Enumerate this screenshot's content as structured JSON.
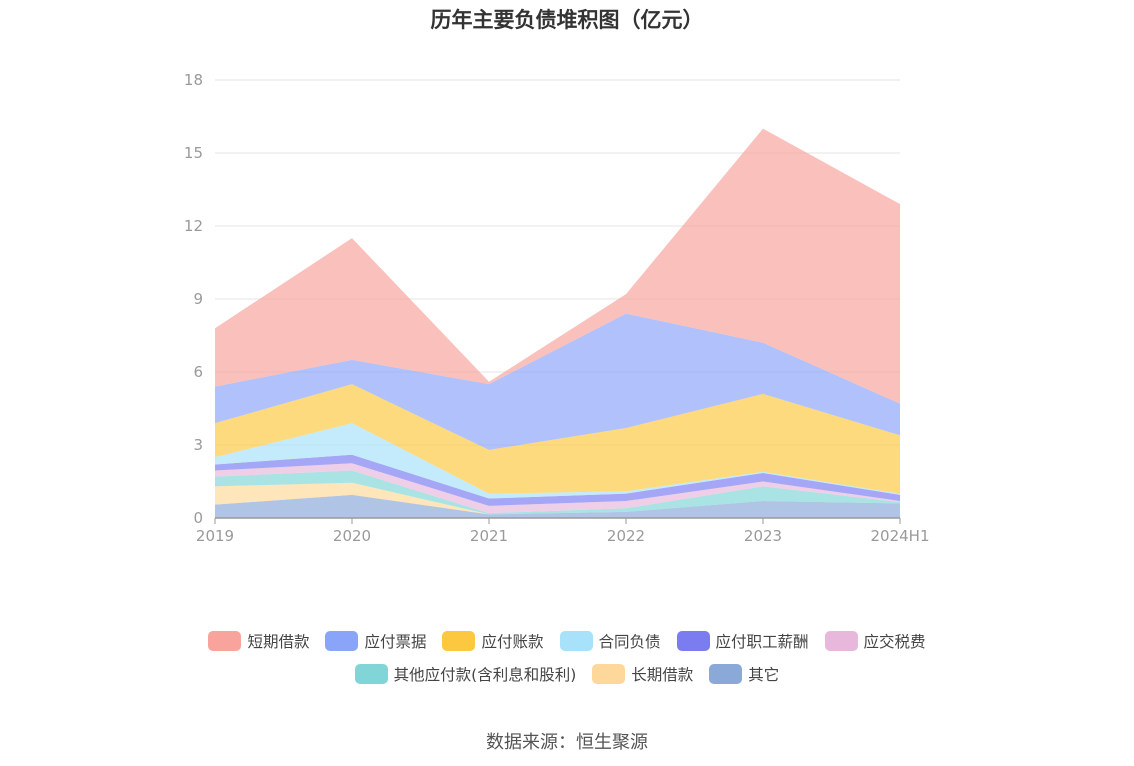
{
  "chart_data": {
    "type": "area",
    "stacked": true,
    "title": "历年主要负债堆积图（亿元）",
    "x": [
      "2019",
      "2020",
      "2021",
      "2022",
      "2023",
      "2024H1"
    ],
    "ylim": [
      0,
      18
    ],
    "yticks": [
      0,
      3,
      6,
      9,
      12,
      15,
      18
    ],
    "grid": true,
    "legend_position": "bottom",
    "series": [
      {
        "name": "其它",
        "color": "#8aa8d8",
        "values": [
          0.55,
          0.95,
          0.15,
          0.25,
          0.7,
          0.6
        ]
      },
      {
        "name": "长期借款",
        "color": "#fdd89a",
        "values": [
          0.75,
          0.5,
          0.0,
          0.0,
          0.0,
          0.0
        ]
      },
      {
        "name": "其他应付款(含利息和股利)",
        "color": "#82d5d6",
        "values": [
          0.4,
          0.5,
          0.05,
          0.15,
          0.6,
          0.05
        ]
      },
      {
        "name": "应交税费",
        "color": "#e8b8dc",
        "values": [
          0.25,
          0.3,
          0.3,
          0.3,
          0.2,
          0.05
        ]
      },
      {
        "name": "应付职工薪酬",
        "color": "#7b7cf0",
        "values": [
          0.25,
          0.35,
          0.3,
          0.3,
          0.35,
          0.25
        ]
      },
      {
        "name": "合同负债",
        "color": "#a8e2fa",
        "values": [
          0.3,
          1.3,
          0.2,
          0.1,
          0.05,
          0.05
        ]
      },
      {
        "name": "应付账款",
        "color": "#fbc840",
        "values": [
          1.4,
          1.6,
          1.8,
          2.6,
          3.2,
          2.4
        ]
      },
      {
        "name": "应付票据",
        "color": "#8aa4fa",
        "values": [
          1.5,
          1.0,
          2.7,
          4.7,
          2.1,
          1.3
        ]
      },
      {
        "name": "短期借款",
        "color": "#f8a39c",
        "values": [
          2.4,
          5.0,
          0.1,
          0.8,
          8.8,
          8.2
        ]
      }
    ],
    "legend_order": [
      "短期借款",
      "应付票据",
      "应付账款",
      "合同负债",
      "应付职工薪酬",
      "应交税费",
      "其他应付款(含利息和股利)",
      "长期借款",
      "其它"
    ],
    "source": "数据来源：恒生聚源"
  }
}
